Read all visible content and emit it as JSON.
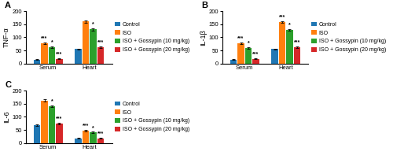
{
  "chart_data": [
    {
      "type": "bar",
      "title": "A",
      "y_label": "TNF-α",
      "categories": [
        "Serum",
        "Heart"
      ],
      "series": [
        {
          "name": "Control",
          "values": [
            15,
            55
          ],
          "errors": [
            1.5,
            2
          ]
        },
        {
          "name": "ISO",
          "values": [
            78,
            160
          ],
          "errors": [
            3,
            4
          ]
        },
        {
          "name": "ISO + Gossypin (10 mg/kg)",
          "values": [
            62,
            130
          ],
          "errors": [
            3,
            4
          ]
        },
        {
          "name": "ISO + Gossypin (20 mg/kg)",
          "values": [
            18,
            62
          ],
          "errors": [
            1.5,
            3
          ]
        }
      ],
      "annotations": [
        {
          "text": "***",
          "category": "Serum",
          "series": "ISO"
        },
        {
          "text": "*",
          "category": "Serum",
          "series": "ISO + Gossypin (10 mg/kg)"
        },
        {
          "text": "***",
          "category": "Serum",
          "series": "ISO + Gossypin (20 mg/kg)"
        },
        {
          "text": "*",
          "category": "Heart",
          "series": "ISO + Gossypin (10 mg/kg)"
        },
        {
          "text": "***",
          "category": "Heart",
          "series": "ISO + Gossypin (20 mg/kg)"
        }
      ],
      "ylim": [
        0,
        200
      ],
      "yticks": [
        0,
        50,
        100,
        150,
        200
      ],
      "legend": "right"
    },
    {
      "type": "bar",
      "title": "B",
      "y_label": "IL-1β",
      "categories": [
        "Serum",
        "Heart"
      ],
      "series": [
        {
          "name": "Control",
          "values": [
            15,
            55
          ],
          "errors": [
            1.5,
            2
          ]
        },
        {
          "name": "ISO",
          "values": [
            78,
            158
          ],
          "errors": [
            3,
            4
          ]
        },
        {
          "name": "ISO + Gossypin (10 mg/kg)",
          "values": [
            60,
            128
          ],
          "errors": [
            3,
            4
          ]
        },
        {
          "name": "ISO + Gossypin (20 mg/kg)",
          "values": [
            18,
            62
          ],
          "errors": [
            1.5,
            3
          ]
        }
      ],
      "annotations": [
        {
          "text": "***",
          "category": "Serum",
          "series": "ISO"
        },
        {
          "text": "*",
          "category": "Serum",
          "series": "ISO + Gossypin (10 mg/kg)"
        },
        {
          "text": "***",
          "category": "Serum",
          "series": "ISO + Gossypin (20 mg/kg)"
        },
        {
          "text": "***",
          "category": "Heart",
          "series": "ISO"
        },
        {
          "text": "*",
          "category": "Heart",
          "series": "ISO + Gossypin (10 mg/kg)"
        },
        {
          "text": "***",
          "category": "Heart",
          "series": "ISO + Gossypin (20 mg/kg)"
        }
      ],
      "ylim": [
        0,
        200
      ],
      "yticks": [
        0,
        50,
        100,
        150,
        200
      ],
      "legend": "right"
    },
    {
      "type": "bar",
      "title": "C",
      "y_label": "IL-6",
      "categories": [
        "Serum",
        "Heart"
      ],
      "series": [
        {
          "name": "Control",
          "values": [
            68,
            18
          ],
          "errors": [
            3,
            2
          ]
        },
        {
          "name": "ISO",
          "values": [
            162,
            48
          ],
          "errors": [
            4,
            3
          ]
        },
        {
          "name": "ISO + Gossypin (10 mg/kg)",
          "values": [
            140,
            40
          ],
          "errors": [
            4,
            3
          ]
        },
        {
          "name": "ISO + Gossypin (20 mg/kg)",
          "values": [
            75,
            18
          ],
          "errors": [
            3,
            1.5
          ]
        }
      ],
      "annotations": [
        {
          "text": "*",
          "category": "Serum",
          "series": "ISO + Gossypin (10 mg/kg)"
        },
        {
          "text": "***",
          "category": "Serum",
          "series": "ISO + Gossypin (20 mg/kg)"
        },
        {
          "text": "***",
          "category": "Heart",
          "series": "ISO"
        },
        {
          "text": "*",
          "category": "Heart",
          "series": "ISO + Gossypin (10 mg/kg)"
        },
        {
          "text": "***",
          "category": "Heart",
          "series": "ISO + Gossypin (20 mg/kg)"
        }
      ],
      "ylim": [
        0,
        200
      ],
      "yticks": [
        0,
        50,
        100,
        150,
        200
      ],
      "legend": "right"
    }
  ]
}
